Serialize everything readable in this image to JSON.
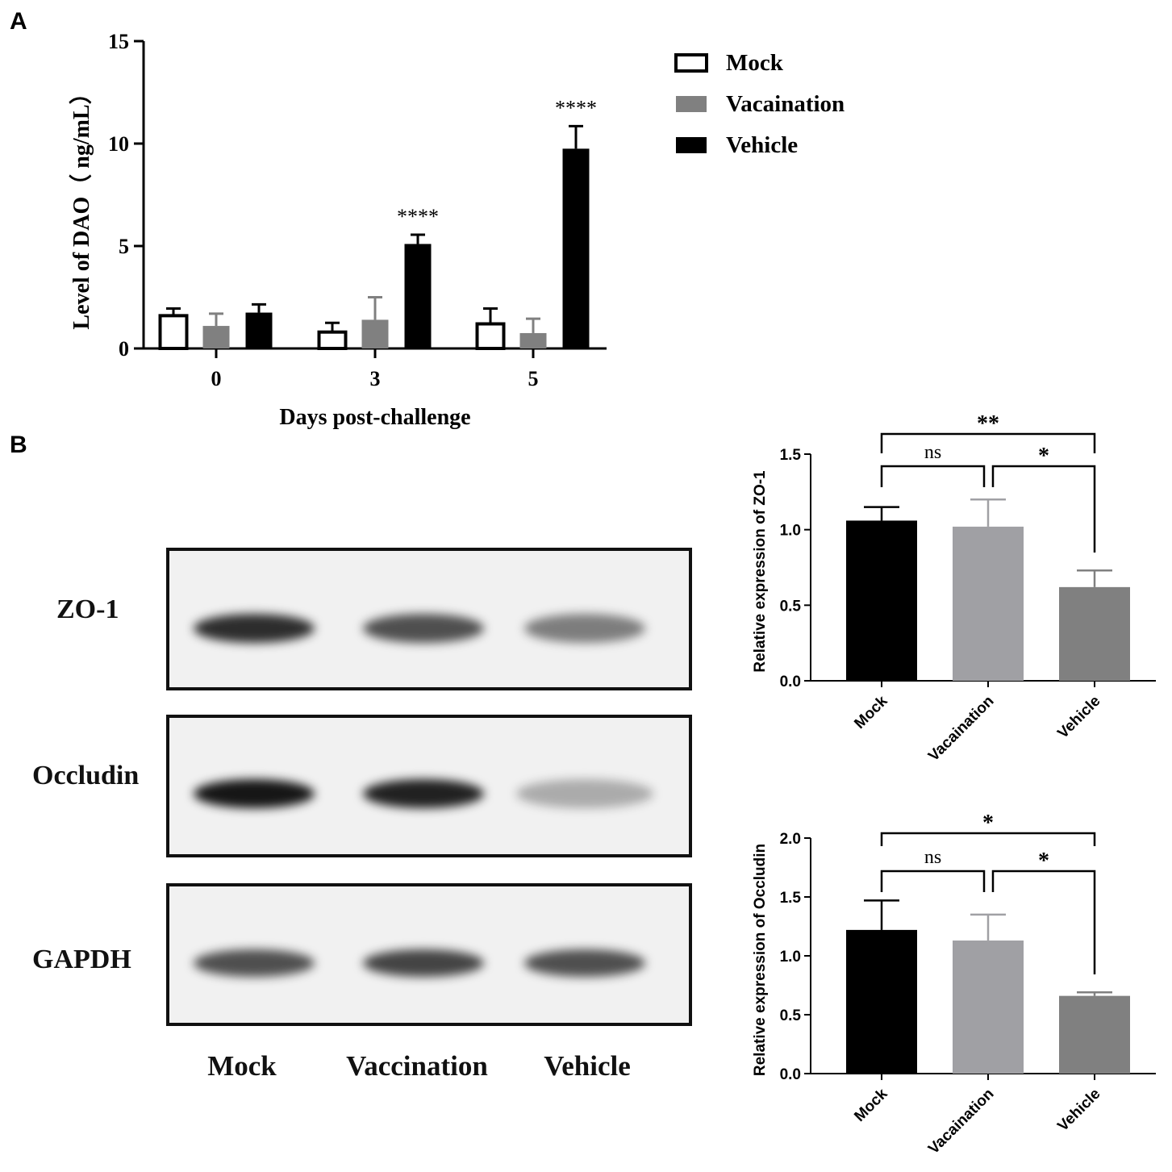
{
  "panel_labels": {
    "a": "A",
    "b": "B"
  },
  "colors": {
    "mock": "#ffffff",
    "vaccination": "#808080",
    "vehicle": "#000000",
    "b_mock": "#000000",
    "b_vaccination": "#a0a0a4",
    "b_vehicle": "#808080"
  },
  "blot": {
    "rows": [
      "ZO-1",
      "Occludin",
      "GAPDH"
    ],
    "lanes": [
      "Mock",
      "Vaccination",
      "Vehicle"
    ],
    "band_intensity": {
      "ZO-1": [
        0.85,
        0.7,
        0.5
      ],
      "Occludin": [
        0.95,
        0.9,
        0.3
      ],
      "GAPDH": [
        0.7,
        0.75,
        0.7
      ]
    }
  },
  "chart_data": [
    {
      "id": "A",
      "type": "bar",
      "categories": [
        "0",
        "3",
        "5"
      ],
      "series": [
        {
          "name": "Mock",
          "values": [
            1.6,
            0.8,
            1.2
          ],
          "errors": [
            0.35,
            0.45,
            0.75
          ],
          "color": "#ffffff",
          "stroke": "#000000"
        },
        {
          "name": "Vacaination",
          "values": [
            1.1,
            1.4,
            0.75
          ],
          "errors": [
            0.6,
            1.1,
            0.7
          ],
          "color": "#808080",
          "stroke": "#808080"
        },
        {
          "name": "Vehicle",
          "values": [
            1.75,
            5.1,
            9.75
          ],
          "errors": [
            0.4,
            0.45,
            1.1
          ],
          "color": "#000000",
          "stroke": "#000000"
        }
      ],
      "annotations": [
        {
          "category": "3",
          "series": "Vehicle",
          "text": "****"
        },
        {
          "category": "5",
          "series": "Vehicle",
          "text": "****"
        }
      ],
      "xlabel": "Days post-challenge",
      "ylabel": "Level of DAO（ ng/mL）",
      "ylim": [
        0,
        15
      ],
      "yticks": [
        "0",
        "5",
        "10",
        "15"
      ],
      "legend_position": "top-right"
    },
    {
      "id": "B-ZO1",
      "type": "bar",
      "categories": [
        "Mock",
        "Vacaination",
        "Vehicle"
      ],
      "values": [
        1.06,
        1.02,
        0.62
      ],
      "errors": [
        0.09,
        0.18,
        0.11
      ],
      "colors": [
        "#000000",
        "#a0a0a4",
        "#808080"
      ],
      "ylabel": "Relative expression of ZO-1",
      "ylim": [
        0,
        1.5
      ],
      "yticks": [
        "0.0",
        "0.5",
        "1.0",
        "1.5"
      ],
      "significance": [
        {
          "from": "Mock",
          "to": "Vacaination",
          "text": "ns"
        },
        {
          "from": "Vacaination",
          "to": "Vehicle",
          "text": "*"
        },
        {
          "from": "Mock",
          "to": "Vehicle",
          "text": "**"
        }
      ]
    },
    {
      "id": "B-Occludin",
      "type": "bar",
      "categories": [
        "Mock",
        "Vacaination",
        "Vehicle"
      ],
      "values": [
        1.22,
        1.13,
        0.66
      ],
      "errors": [
        0.25,
        0.22,
        0.03
      ],
      "colors": [
        "#000000",
        "#a0a0a4",
        "#808080"
      ],
      "ylabel": "Relative expression of Occludin",
      "ylim": [
        0,
        2.0
      ],
      "yticks": [
        "0.0",
        "0.5",
        "1.0",
        "1.5",
        "2.0"
      ],
      "significance": [
        {
          "from": "Mock",
          "to": "Vacaination",
          "text": "ns"
        },
        {
          "from": "Vacaination",
          "to": "Vehicle",
          "text": "*"
        },
        {
          "from": "Mock",
          "to": "Vehicle",
          "text": "*"
        }
      ]
    }
  ]
}
